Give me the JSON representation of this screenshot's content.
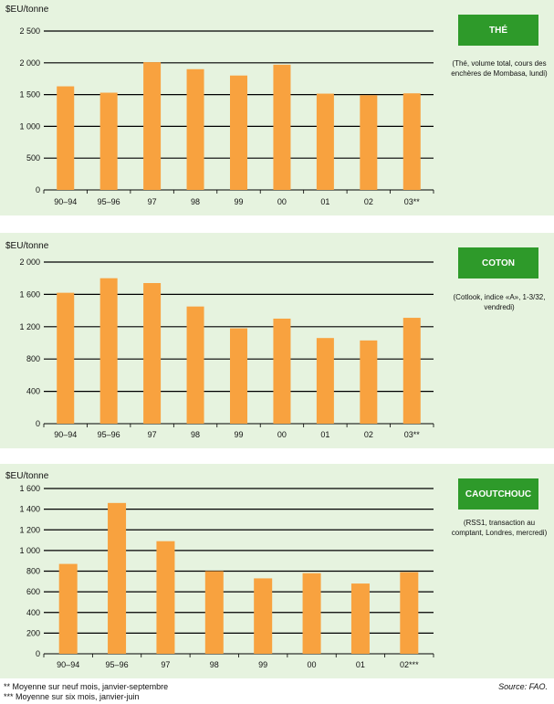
{
  "colors": {
    "bar": "#f8a23f",
    "panel_bg": "#e6f3df",
    "badge_bg": "#2e9a2a",
    "grid": "#000000"
  },
  "chart_data": [
    {
      "type": "bar",
      "ylabel": "$EU/tonne",
      "title": "THÉ",
      "note": "(Thé, volume total, cours des enchères de Mombasa, lundi)",
      "categories": [
        "90–94",
        "95–96",
        "97",
        "98",
        "99",
        "00",
        "01",
        "02",
        "03**"
      ],
      "values": [
        1630,
        1530,
        2010,
        1900,
        1800,
        1970,
        1515,
        1490,
        1520
      ],
      "ylim": [
        0,
        2500
      ],
      "yticks": [
        0,
        500,
        1000,
        1500,
        2000,
        2500
      ],
      "ytick_labels": [
        "0",
        "500",
        "1 000",
        "1 500",
        "2 000",
        "2 500"
      ],
      "grid": true
    },
    {
      "type": "bar",
      "ylabel": "$EU/tonne",
      "title": "COTON",
      "note": "(Cotlook, indice «A», 1-3/32, vendredi)",
      "categories": [
        "90–94",
        "95–96",
        "97",
        "98",
        "99",
        "00",
        "01",
        "02",
        "03**"
      ],
      "values": [
        1620,
        1800,
        1740,
        1450,
        1180,
        1300,
        1060,
        1030,
        1310
      ],
      "ylim": [
        0,
        2000
      ],
      "yticks": [
        0,
        400,
        800,
        1200,
        1600,
        2000
      ],
      "ytick_labels": [
        "0",
        "400",
        "800",
        "1 200",
        "1 600",
        "2 000"
      ],
      "grid": true
    },
    {
      "type": "bar",
      "ylabel": "$EU/tonne",
      "title": "CAOUTCHOUC",
      "note": "(RSS1, transaction au comptant, Londres, mercredi)",
      "categories": [
        "90–94",
        "95–96",
        "97",
        "98",
        "99",
        "00",
        "01",
        "02***"
      ],
      "values": [
        870,
        1460,
        1090,
        800,
        730,
        780,
        680,
        790
      ],
      "ylim": [
        0,
        1600
      ],
      "yticks": [
        0,
        200,
        400,
        600,
        800,
        1000,
        1200,
        1400,
        1600
      ],
      "ytick_labels": [
        "0",
        "200",
        "400",
        "600",
        "800",
        "1 000",
        "1 200",
        "1 400",
        "1 600"
      ],
      "grid": true
    }
  ],
  "footnotes": {
    "note1": "** Moyenne sur neuf mois, janvier-septembre",
    "note2": "*** Moyenne sur six mois, janvier-juin",
    "source": "Source: FAO."
  }
}
